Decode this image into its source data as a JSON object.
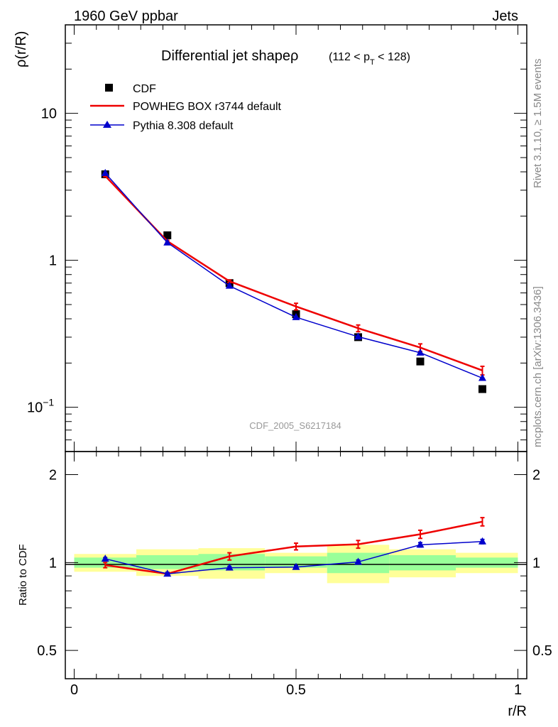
{
  "header": {
    "left": "1960 GeV ppbar",
    "right": "Jets"
  },
  "side": {
    "top": "Rivet 3.1.10, ≥ 1.5M events",
    "bottom": "mcplots.cern.ch [arXiv:1306.3436]"
  },
  "chart_data": [
    {
      "type": "line",
      "title": {
        "main": "Differential jet shapeρ",
        "range_pre": "(112 < p",
        "range_sub": "T",
        "range_post": " < 128)"
      },
      "xlabel": "r/R",
      "ylabel": "ρ(r/R)",
      "yscale": "log",
      "ylim": [
        0.05,
        40
      ],
      "xlim": [
        -0.02,
        1.02
      ],
      "analysis_label": "CDF_2005_S6217184",
      "yticks": [
        {
          "value": 0.1,
          "label": "10",
          "sup": "−1"
        },
        {
          "value": 1,
          "label": "1",
          "sup": ""
        },
        {
          "value": 10,
          "label": "10",
          "sup": ""
        }
      ],
      "legend": [
        {
          "key": "cdf",
          "label": "CDF"
        },
        {
          "key": "powheg",
          "label": "POWHEG BOX r3744 default"
        },
        {
          "key": "pythia",
          "label": "Pythia 8.308 default"
        }
      ],
      "x": [
        0.07,
        0.21,
        0.35,
        0.5,
        0.64,
        0.78,
        0.92
      ],
      "series": [
        {
          "name": "CDF",
          "key": "cdf",
          "style": "marker-square",
          "color": "#000000",
          "values": [
            3.85,
            1.48,
            0.7,
            0.43,
            0.3,
            0.205,
            0.133
          ]
        },
        {
          "name": "POWHEG BOX r3744 default",
          "key": "powheg",
          "style": "line",
          "color": "#ee0000",
          "values": [
            3.75,
            1.35,
            0.72,
            0.485,
            0.345,
            0.255,
            0.178
          ],
          "errors": [
            0.05,
            0.02,
            0.015,
            0.025,
            0.018,
            0.015,
            0.012
          ]
        },
        {
          "name": "Pythia 8.308 default",
          "key": "pythia",
          "style": "line-triangle",
          "color": "#0000cc",
          "values": [
            3.92,
            1.32,
            0.67,
            0.41,
            0.302,
            0.235,
            0.158
          ]
        }
      ]
    },
    {
      "type": "line",
      "ylabel": "Ratio to CDF",
      "xlabel": "r/R",
      "yscale": "log",
      "ylim": [
        0.4,
        2.4
      ],
      "xlim": [
        -0.02,
        1.02
      ],
      "yticks": [
        {
          "value": 0.5,
          "label": "0.5"
        },
        {
          "value": 1,
          "label": "1"
        },
        {
          "value": 2,
          "label": "2"
        }
      ],
      "xticks": [
        {
          "value": 0,
          "label": "0"
        },
        {
          "value": 0.5,
          "label": "0.5"
        },
        {
          "value": 1,
          "label": "1"
        }
      ],
      "bands": [
        {
          "x0": 0.0,
          "x1": 0.14,
          "green": [
            0.96,
            1.04
          ],
          "yellow": [
            0.93,
            1.07
          ]
        },
        {
          "x0": 0.14,
          "x1": 0.28,
          "green": [
            0.95,
            1.06
          ],
          "yellow": [
            0.9,
            1.11
          ]
        },
        {
          "x0": 0.28,
          "x1": 0.43,
          "green": [
            0.94,
            1.07
          ],
          "yellow": [
            0.88,
            1.12
          ]
        },
        {
          "x0": 0.43,
          "x1": 0.57,
          "green": [
            0.96,
            1.05
          ],
          "yellow": [
            0.92,
            1.08
          ]
        },
        {
          "x0": 0.57,
          "x1": 0.71,
          "green": [
            0.92,
            1.08
          ],
          "yellow": [
            0.85,
            1.15
          ]
        },
        {
          "x0": 0.71,
          "x1": 0.86,
          "green": [
            0.94,
            1.06
          ],
          "yellow": [
            0.89,
            1.11
          ]
        },
        {
          "x0": 0.86,
          "x1": 1.0,
          "green": [
            0.96,
            1.04
          ],
          "yellow": [
            0.92,
            1.08
          ]
        }
      ],
      "x": [
        0.07,
        0.21,
        0.35,
        0.5,
        0.64,
        0.78,
        0.92
      ],
      "series": [
        {
          "name": "POWHEG BOX r3744 default",
          "key": "powheg",
          "color": "#ee0000",
          "values": [
            0.98,
            0.915,
            1.05,
            1.135,
            1.155,
            1.25,
            1.38
          ],
          "errors": [
            0.02,
            0.01,
            0.03,
            0.03,
            0.035,
            0.04,
            0.045
          ]
        },
        {
          "name": "Pythia 8.308 default",
          "key": "pythia",
          "color": "#0000cc",
          "values": [
            1.03,
            0.915,
            0.96,
            0.965,
            1.005,
            1.15,
            1.18
          ],
          "errors": [
            0.01,
            0.01,
            0.01,
            0.01,
            0.015,
            0.02,
            0.02
          ]
        }
      ]
    }
  ]
}
